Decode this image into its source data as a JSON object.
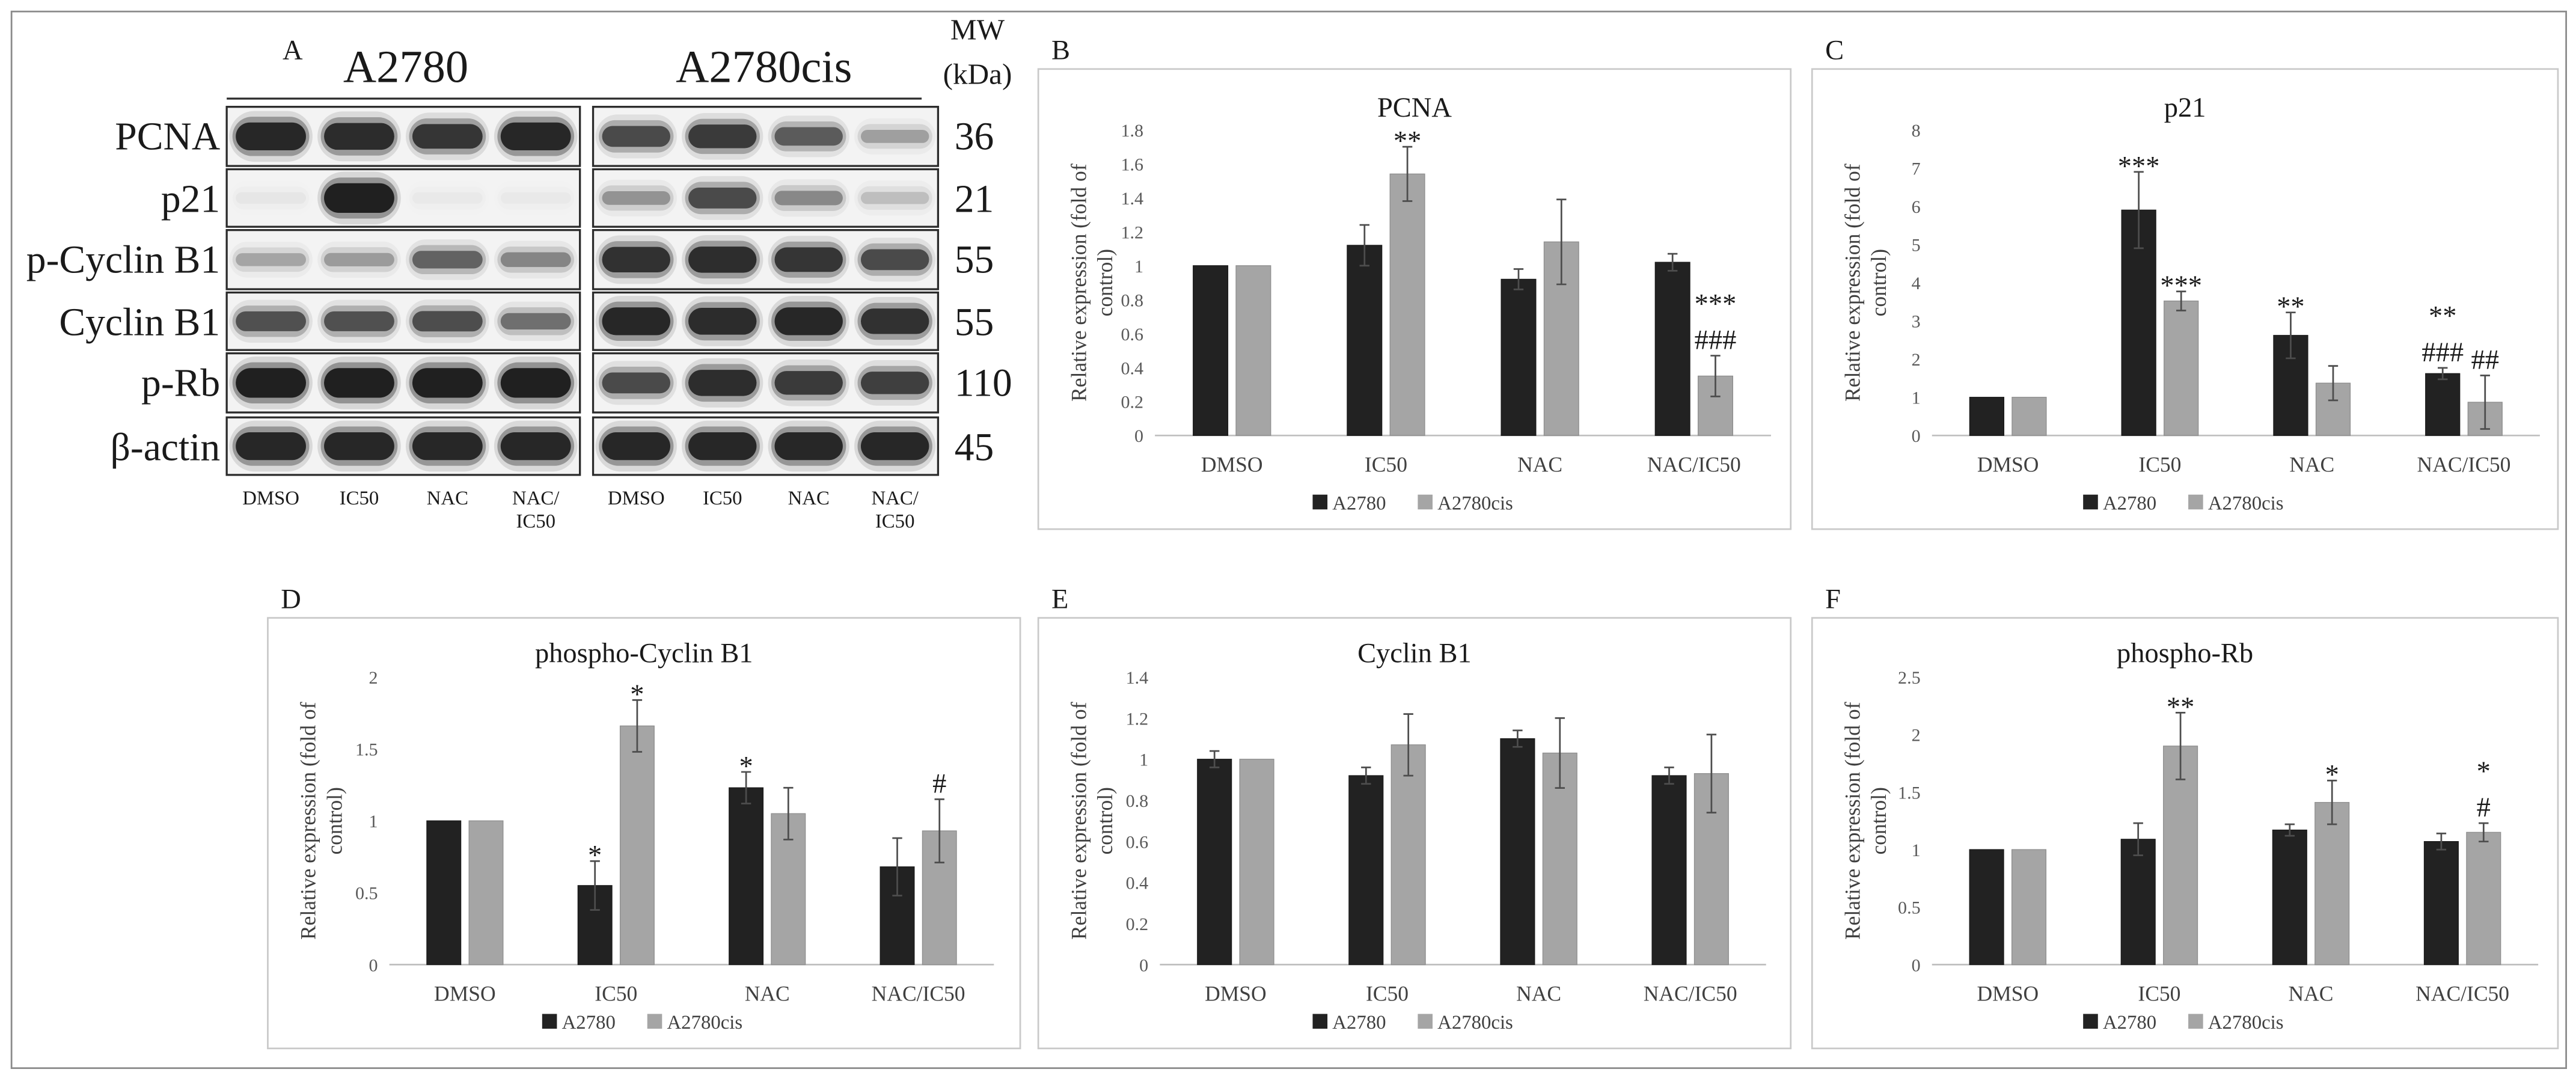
{
  "colors": {
    "band": "#141414",
    "membrane": "#f3f3f3"
  },
  "panel_a": {
    "letter": "A",
    "group_left": "A2780",
    "group_right": "A2780cis",
    "mw_header": "MW",
    "mw_unit": "(kDa)",
    "rows": [
      {
        "label": "PCNA",
        "mw": "36",
        "intensity": [
          0.95,
          0.92,
          0.85,
          0.95,
          0.72,
          0.82,
          0.62,
          0.3
        ]
      },
      {
        "label": "p21",
        "mw": "21",
        "intensity": [
          0.04,
          1.0,
          0.03,
          0.03,
          0.35,
          0.72,
          0.4,
          0.18
        ]
      },
      {
        "label": "p-Cyclin B1",
        "mw": "55",
        "intensity": [
          0.28,
          0.32,
          0.58,
          0.42,
          0.88,
          0.9,
          0.85,
          0.72
        ]
      },
      {
        "label": "Cyclin B1",
        "mw": "55",
        "intensity": [
          0.68,
          0.68,
          0.7,
          0.52,
          0.95,
          0.92,
          0.95,
          0.88
        ]
      },
      {
        "label": "p-Rb",
        "mw": "110",
        "intensity": [
          1.0,
          1.0,
          1.0,
          1.0,
          0.72,
          0.9,
          0.82,
          0.78
        ]
      },
      {
        "label": "β-actin",
        "mw": "45",
        "intensity": [
          0.95,
          0.95,
          0.95,
          0.95,
          0.95,
          0.95,
          0.95,
          0.95
        ]
      }
    ],
    "lane_labels": [
      [
        "DMSO"
      ],
      [
        "IC50"
      ],
      [
        "NAC"
      ],
      [
        "NAC/",
        "IC50"
      ],
      [
        "DMSO"
      ],
      [
        "IC50"
      ],
      [
        "NAC"
      ],
      [
        "NAC/",
        "IC50"
      ]
    ]
  },
  "chart_data": [
    {
      "panel": "B",
      "type": "bar",
      "title": "PCNA",
      "ylabel": [
        "Relative expression (fold of",
        "control)"
      ],
      "categories": [
        "DMSO",
        "IC50",
        "NAC",
        "NAC/IC50"
      ],
      "series": [
        {
          "name": "A2780",
          "color": "#222222",
          "values": [
            1.0,
            1.12,
            0.92,
            1.02
          ],
          "errors": [
            0,
            0.12,
            0.06,
            0.05
          ]
        },
        {
          "name": "A2780cis",
          "color": "#a5a5a5",
          "values": [
            1.0,
            1.54,
            1.14,
            0.35
          ],
          "errors": [
            0,
            0.16,
            0.25,
            0.12
          ]
        }
      ],
      "ylim": [
        0,
        1.8
      ],
      "yticks": [
        "0",
        "0.2",
        "0.4",
        "0.6",
        "0.8",
        "1",
        "1.2",
        "1.4",
        "1.6",
        "1.8"
      ],
      "annotations": [
        {
          "series": 1,
          "category": 1,
          "text": [
            "**"
          ]
        },
        {
          "series": 1,
          "category": 3,
          "text": [
            "***",
            "###"
          ]
        }
      ],
      "legend": "bottom",
      "grid": false
    },
    {
      "panel": "C",
      "type": "bar",
      "title": "p21",
      "ylabel": [
        "Relative expression (fold of",
        "control)"
      ],
      "categories": [
        "DMSO",
        "IC50",
        "NAC",
        "NAC/IC50"
      ],
      "series": [
        {
          "name": "A2780",
          "color": "#222222",
          "values": [
            1.0,
            5.9,
            2.62,
            1.62
          ],
          "errors": [
            0,
            1.0,
            0.6,
            0.15
          ]
        },
        {
          "name": "A2780cis",
          "color": "#a5a5a5",
          "values": [
            1.0,
            3.52,
            1.37,
            0.87
          ],
          "errors": [
            0,
            0.25,
            0.45,
            0.7
          ]
        }
      ],
      "ylim": [
        0,
        8
      ],
      "yticks": [
        "0",
        "1",
        "2",
        "3",
        "4",
        "5",
        "6",
        "7",
        "8"
      ],
      "annotations": [
        {
          "series": 0,
          "category": 1,
          "text": [
            "***"
          ]
        },
        {
          "series": 1,
          "category": 1,
          "text": [
            "***"
          ]
        },
        {
          "series": 0,
          "category": 2,
          "text": [
            "**"
          ]
        },
        {
          "series": 0,
          "category": 3,
          "text": [
            "**",
            "###"
          ]
        },
        {
          "series": 1,
          "category": 3,
          "text": [
            "##"
          ]
        }
      ],
      "legend": "bottom",
      "grid": false
    },
    {
      "panel": "D",
      "type": "bar",
      "title": "phospho-Cyclin B1",
      "ylabel": [
        "Relative expression (fold of",
        "control)"
      ],
      "categories": [
        "DMSO",
        "IC50",
        "NAC",
        "NAC/IC50"
      ],
      "series": [
        {
          "name": "A2780",
          "color": "#222222",
          "values": [
            1.0,
            0.55,
            1.23,
            0.68
          ],
          "errors": [
            0,
            0.17,
            0.11,
            0.2
          ]
        },
        {
          "name": "A2780cis",
          "color": "#a5a5a5",
          "values": [
            1.0,
            1.66,
            1.05,
            0.93
          ],
          "errors": [
            0,
            0.18,
            0.18,
            0.22
          ]
        }
      ],
      "ylim": [
        0,
        2
      ],
      "yticks": [
        "0",
        "0.5",
        "1",
        "1.5",
        "2"
      ],
      "annotations": [
        {
          "series": 0,
          "category": 1,
          "text": [
            "*"
          ]
        },
        {
          "series": 1,
          "category": 1,
          "text": [
            "*"
          ]
        },
        {
          "series": 0,
          "category": 2,
          "text": [
            "*"
          ]
        },
        {
          "series": 1,
          "category": 3,
          "text": [
            "#"
          ]
        }
      ],
      "legend": "bottom",
      "grid": false
    },
    {
      "panel": "E",
      "type": "bar",
      "title": "Cyclin B1",
      "ylabel": [
        "Relative expression (fold of",
        "control)"
      ],
      "categories": [
        "DMSO",
        "IC50",
        "NAC",
        "NAC/IC50"
      ],
      "series": [
        {
          "name": "A2780",
          "color": "#222222",
          "values": [
            1.0,
            0.92,
            1.1,
            0.92
          ],
          "errors": [
            0.04,
            0.04,
            0.04,
            0.04
          ]
        },
        {
          "name": "A2780cis",
          "color": "#a5a5a5",
          "values": [
            1.0,
            1.07,
            1.03,
            0.93
          ],
          "errors": [
            0,
            0.15,
            0.17,
            0.19
          ]
        }
      ],
      "ylim": [
        0,
        1.4
      ],
      "yticks": [
        "0",
        "0.2",
        "0.4",
        "0.6",
        "0.8",
        "1",
        "1.2",
        "1.4"
      ],
      "annotations": [],
      "legend": "bottom",
      "grid": false
    },
    {
      "panel": "F",
      "type": "bar",
      "title": "phospho-Rb",
      "ylabel": [
        "Relative expression (fold of",
        "control)"
      ],
      "categories": [
        "DMSO",
        "IC50",
        "NAC",
        "NAC/IC50"
      ],
      "series": [
        {
          "name": "A2780",
          "color": "#222222",
          "values": [
            1.0,
            1.09,
            1.17,
            1.07
          ],
          "errors": [
            0,
            0.14,
            0.05,
            0.07
          ]
        },
        {
          "name": "A2780cis",
          "color": "#a5a5a5",
          "values": [
            1.0,
            1.9,
            1.41,
            1.15
          ],
          "errors": [
            0,
            0.29,
            0.19,
            0.08
          ]
        }
      ],
      "ylim": [
        0,
        2.5
      ],
      "yticks": [
        "0",
        "0.5",
        "1",
        "1.5",
        "2",
        "2.5"
      ],
      "annotations": [
        {
          "series": 1,
          "category": 1,
          "text": [
            "**"
          ]
        },
        {
          "series": 1,
          "category": 2,
          "text": [
            "*"
          ]
        },
        {
          "series": 1,
          "category": 3,
          "text": [
            "*",
            "#"
          ]
        }
      ],
      "legend": "bottom",
      "grid": false
    }
  ]
}
